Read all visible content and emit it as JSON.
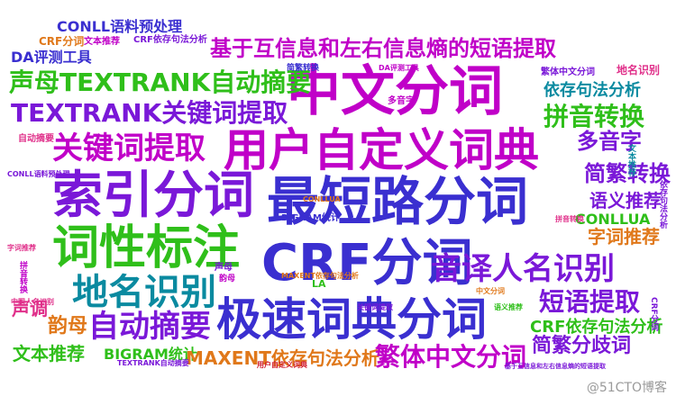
{
  "palette": {
    "magenta": "#c000c8",
    "purple": "#7a18d8",
    "green": "#2fbf1a",
    "indigo": "#3a2fd0",
    "teal": "#0a8aa0",
    "orange": "#e0781a",
    "red": "#d01a2a",
    "pink": "#e0308a",
    "lightpurple": "#9a5ad8"
  },
  "words": [
    {
      "id": "zhongwen-fenci",
      "text": "中文分词",
      "color": "magenta"
    },
    {
      "id": "yonghu-ciddian",
      "text": "用户自定义词典",
      "color": "magenta"
    },
    {
      "id": "suoyin-fenci",
      "text": "索引分词",
      "color": "purple"
    },
    {
      "id": "zuiduan-lujing",
      "text": "最短路分词",
      "color": "indigo"
    },
    {
      "id": "cixing-biaozhu",
      "text": "词性标注",
      "color": "green"
    },
    {
      "id": "crf-fenci",
      "text": "CRF分词",
      "color": "indigo"
    },
    {
      "id": "jisu-cidian",
      "text": "极速词典分词",
      "color": "indigo"
    },
    {
      "id": "diming-shibie",
      "text": "地名识别",
      "color": "teal"
    },
    {
      "id": "yinyi-renming",
      "text": "音译人名识别",
      "color": "purple"
    },
    {
      "id": "guanjianci-1",
      "text": "关键词提取",
      "color": "magenta"
    },
    {
      "id": "tr-guanjianci",
      "text": "TEXTRANK关键词提取",
      "color": "purple"
    },
    {
      "id": "shengmu-tr",
      "text": "声母TEXTRANK自动摘要",
      "color": "green"
    },
    {
      "id": "hucuoxi",
      "text": "基于互信息和左右信息熵的短语提取",
      "color": "magenta"
    },
    {
      "id": "duanyu-tiqu",
      "text": "短语提取",
      "color": "purple"
    },
    {
      "id": "pinyin-zhuanhuan",
      "text": "拼音转换",
      "color": "green"
    },
    {
      "id": "duoyinzi",
      "text": "多音字",
      "color": "purple"
    },
    {
      "id": "jianfan-zhuanhuan",
      "text": "简繁转换",
      "color": "purple"
    },
    {
      "id": "yiju-fenxi",
      "text": "依存句法分析",
      "color": "teal"
    },
    {
      "id": "yuyi-tuijian",
      "text": "语义推荐",
      "color": "purple"
    },
    {
      "id": "zici-tuijian",
      "text": "字词推荐",
      "color": "orange"
    },
    {
      "id": "conllua",
      "text": "CONLLUA",
      "color": "green"
    },
    {
      "id": "zidong-zhaiyao-2",
      "text": "自动摘要",
      "color": "purple"
    },
    {
      "id": "yunmu",
      "text": "韵母",
      "color": "orange"
    },
    {
      "id": "shengdiao",
      "text": "声调",
      "color": "pink"
    },
    {
      "id": "wenben-tuijian",
      "text": "文本推荐",
      "color": "green"
    },
    {
      "id": "bigram-tongji",
      "text": "BIGRAM统计",
      "color": "green"
    },
    {
      "id": "maxent",
      "text": "MAXENT依存句法分析",
      "color": "orange"
    },
    {
      "id": "fanti-zhongwen",
      "text": "繁体中文分词",
      "color": "magenta"
    },
    {
      "id": "crf-yicun",
      "text": "CRF依存句法分析",
      "color": "green"
    },
    {
      "id": "jianfan-qiyi",
      "text": "简繁分歧词",
      "color": "purple"
    },
    {
      "id": "conll-yuliao",
      "text": "CONLL语料预处理",
      "color": "indigo"
    },
    {
      "id": "da-pingce",
      "text": "DA评测工具",
      "color": "indigo"
    },
    {
      "id": "crf-fenci-small",
      "text": "CRF分词",
      "color": "orange"
    },
    {
      "id": "wenben-tuijian-small",
      "text": "文本推荐",
      "color": "magenta"
    },
    {
      "id": "crf-yicun-small",
      "text": "CRF依存句法分析",
      "color": "purple"
    },
    {
      "id": "fanti-small",
      "text": "繁体中文分词",
      "color": "purple"
    },
    {
      "id": "diming-small",
      "text": "地名识别",
      "color": "pink"
    },
    {
      "id": "jianfan-small",
      "text": "简繁转换",
      "color": "indigo"
    },
    {
      "id": "zidong-small",
      "text": "自动摘要",
      "color": "pink"
    },
    {
      "id": "bigram-small",
      "text": "BIGRAM统计",
      "color": "indigo"
    },
    {
      "id": "la",
      "text": "LA",
      "color": "green"
    },
    {
      "id": "duoyin-small",
      "text": "多音字",
      "color": "magenta"
    },
    {
      "id": "zhongguo-renming",
      "text": "中国人名识别",
      "color": "pink"
    },
    {
      "id": "yonghu-small",
      "text": "用户自定义词典",
      "color": "red"
    },
    {
      "id": "jiyu-small",
      "text": "基于互信息和左右信息熵的短语提取",
      "color": "purple"
    },
    {
      "id": "yuyi-small",
      "text": "语义推荐",
      "color": "green"
    },
    {
      "id": "pinyin-small",
      "text": "拼音转换",
      "color": "pink"
    },
    {
      "id": "conllua-small",
      "text": "CONLLUA",
      "color": "orange"
    },
    {
      "id": "zici-small",
      "text": "字词推荐",
      "color": "pink"
    },
    {
      "id": "shengmu-small",
      "text": "声母",
      "color": "purple"
    },
    {
      "id": "yunmu-small",
      "text": "韵母",
      "color": "magenta"
    },
    {
      "id": "tr-small",
      "text": "TEXTRANK自动摘要",
      "color": "purple"
    },
    {
      "id": "guanjianci-small",
      "text": "关键词提取",
      "color": "purple"
    },
    {
      "id": "zhongwen-small",
      "text": "中文分词",
      "color": "orange"
    },
    {
      "id": "crf-v",
      "text": "CRF分词",
      "color": "purple"
    },
    {
      "id": "yicun-v",
      "text": "依存句法分析",
      "color": "purple"
    },
    {
      "id": "pinyin-v",
      "text": "拼音转换",
      "color": "magenta"
    },
    {
      "id": "tuijian-v",
      "text": "文本推荐",
      "color": "teal"
    },
    {
      "id": "maxent-small",
      "text": "MAXENT依存句法分析",
      "color": "orange"
    },
    {
      "id": "conll-small",
      "text": "CONLL语料预处理",
      "color": "purple"
    },
    {
      "id": "da-small",
      "text": "DA评测工具",
      "color": "magenta"
    }
  ],
  "watermark": "@51CTO博客"
}
